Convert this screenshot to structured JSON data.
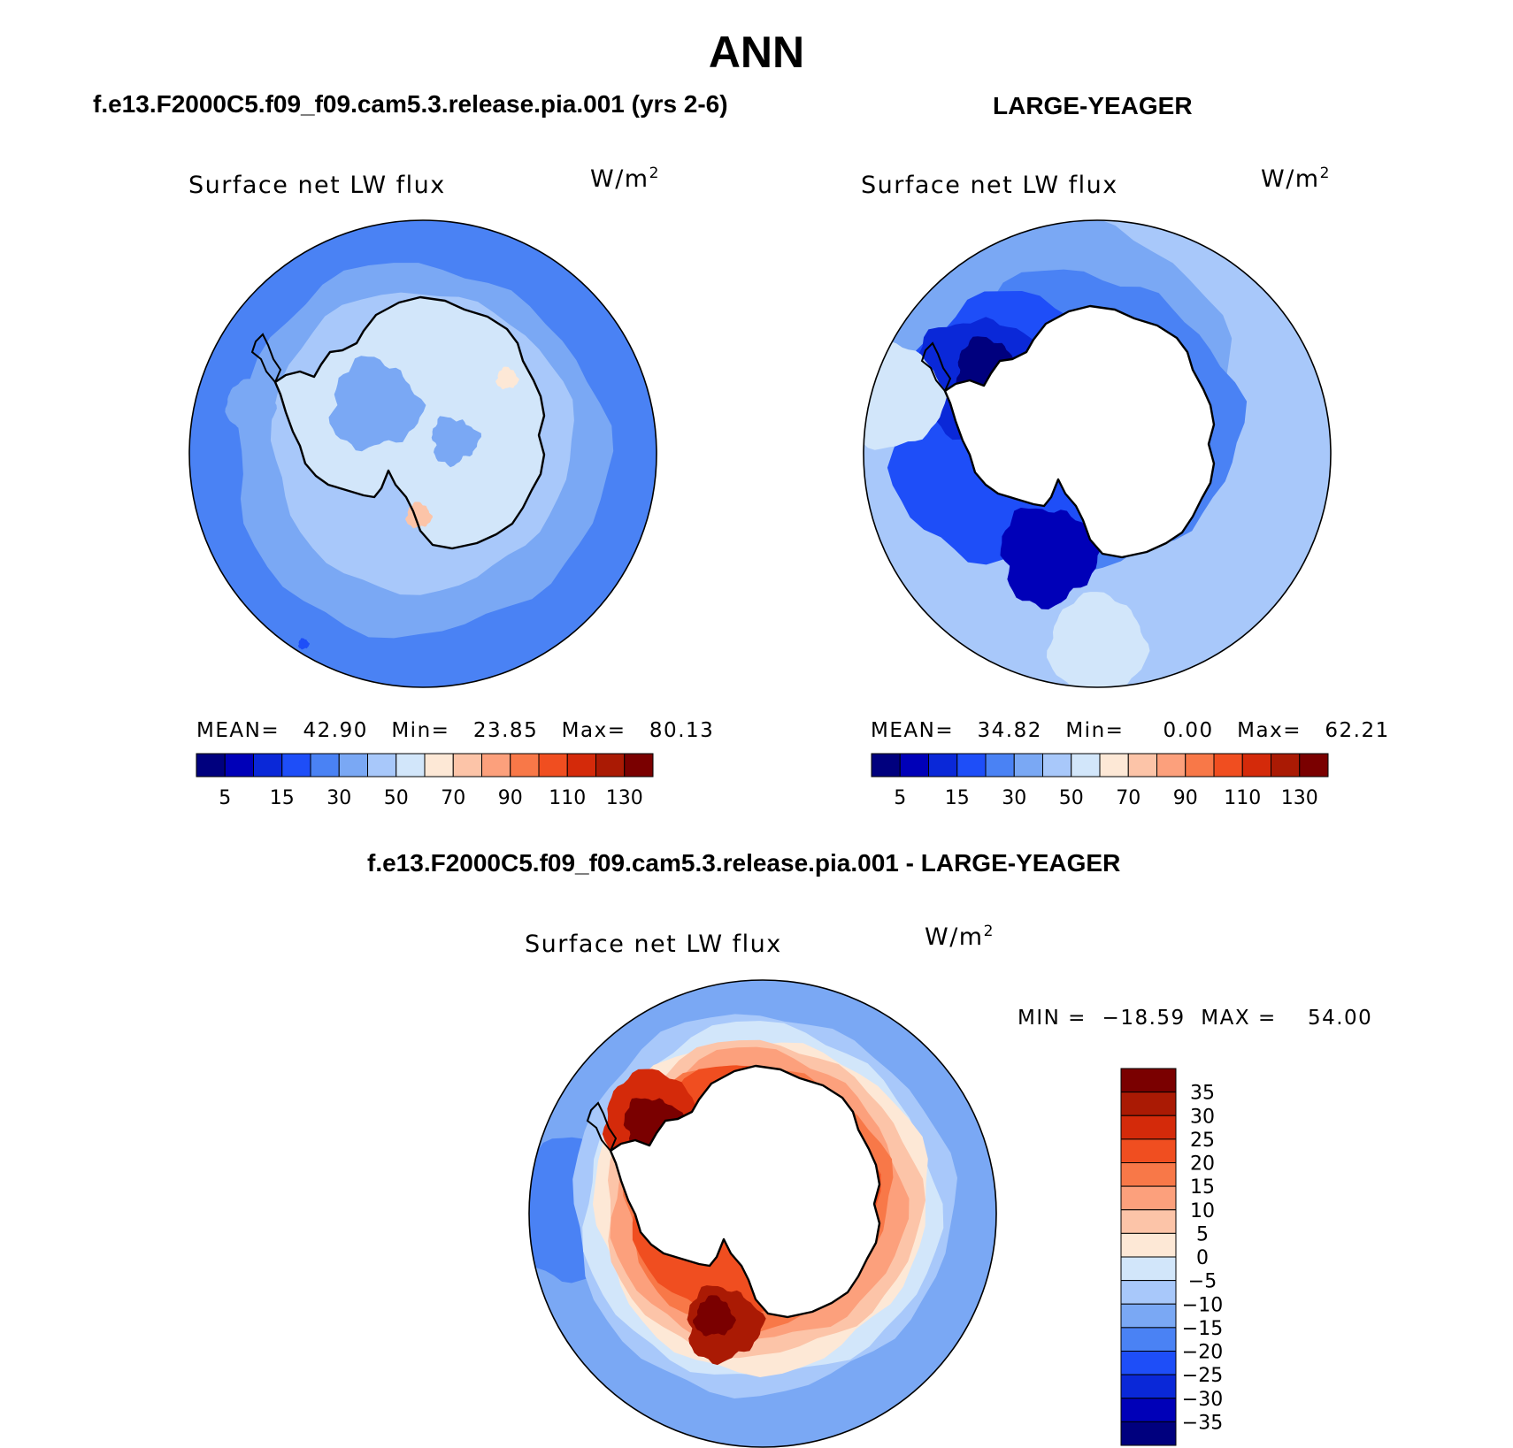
{
  "figure": {
    "title": "ANN",
    "diff_title": "f.e13.F2000C5.f09_f09.cam5.3.release.pia.001 - LARGE-YEAGER"
  },
  "colors": {
    "abs_scale": [
      "#00007e",
      "#0000b8",
      "#0a28d8",
      "#1e4ef8",
      "#4a82f4",
      "#7aa8f4",
      "#a8c8fa",
      "#d2e6fa",
      "#fde8d6",
      "#fcc4a8",
      "#fca07c",
      "#f87848",
      "#f04e20",
      "#d42a0a",
      "#aa1a04",
      "#7a0000"
    ],
    "diff_scale": [
      "#00007e",
      "#0000b8",
      "#0a28d8",
      "#1e4ef8",
      "#4a82f4",
      "#7aa8f4",
      "#a8c8fa",
      "#d2e6fa",
      "#fde8d6",
      "#fcc4a8",
      "#fca07c",
      "#f87848",
      "#f04e20",
      "#d42a0a",
      "#aa1a04",
      "#7a0000"
    ],
    "land": "#ffffff",
    "coast": "#000000"
  },
  "chart_data": [
    {
      "type": "heatmap",
      "panel": "model",
      "title": "f.e13.F2000C5.f09_f09.cam5.3.release.pia.001 (yrs 2-6)",
      "field": "Surface net LW flux",
      "units": "W/m",
      "units_exp": "2",
      "stats": {
        "mean_label": "MEAN=",
        "mean": "42.90",
        "min_label": "Min=",
        "min": "23.85",
        "max_label": "Max=",
        "max": "80.13"
      },
      "colorbar": {
        "tick_labels": [
          "5",
          "15",
          "30",
          "50",
          "70",
          "90",
          "110",
          "130"
        ]
      },
      "projection": "south polar stereographic"
    },
    {
      "type": "heatmap",
      "panel": "observations",
      "title": "LARGE-YEAGER",
      "field": "Surface net LW flux",
      "units": "W/m",
      "units_exp": "2",
      "stats": {
        "mean_label": "MEAN=",
        "mean": "34.82",
        "min_label": "Min=",
        "min": "0.00",
        "max_label": "Max=",
        "max": "62.21"
      },
      "colorbar": {
        "tick_labels": [
          "5",
          "15",
          "30",
          "50",
          "70",
          "90",
          "110",
          "130"
        ]
      },
      "projection": "south polar stereographic"
    },
    {
      "type": "heatmap",
      "panel": "difference",
      "field": "Surface net LW flux",
      "units": "W/m",
      "units_exp": "2",
      "stats": {
        "min_label": "MIN =",
        "min": "−18.59",
        "max_label": "MAX =",
        "max": "54.00"
      },
      "colorbar": {
        "tick_labels": [
          "35",
          "30",
          "25",
          "20",
          "15",
          "10",
          "5",
          "0",
          "−5",
          "−10",
          "−15",
          "−20",
          "−25",
          "−30",
          "−35"
        ]
      },
      "projection": "south polar stereographic"
    }
  ]
}
